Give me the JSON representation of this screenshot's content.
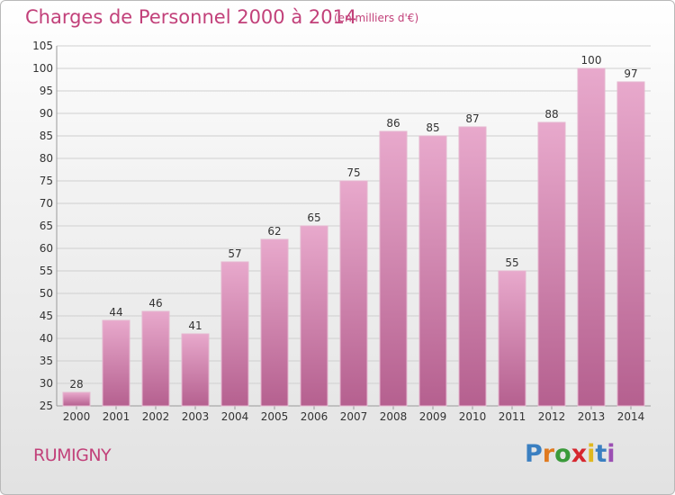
{
  "chart_data": {
    "type": "bar",
    "title": "Charges de Personnel 2000 à 2014",
    "subtitle": "(en milliers d'€)",
    "categories": [
      "2000",
      "2001",
      "2002",
      "2003",
      "2004",
      "2005",
      "2006",
      "2007",
      "2008",
      "2009",
      "2010",
      "2011",
      "2012",
      "2013",
      "2014"
    ],
    "values": [
      28,
      44,
      46,
      41,
      57,
      62,
      65,
      75,
      86,
      85,
      87,
      55,
      88,
      100,
      97
    ],
    "ylim": [
      25,
      105
    ],
    "yticks": [
      25,
      30,
      35,
      40,
      45,
      50,
      55,
      60,
      65,
      70,
      75,
      80,
      85,
      90,
      95,
      100,
      105
    ],
    "grid": true,
    "bar_color": "#d98bb5"
  },
  "footer": {
    "commune": "RUMIGNY",
    "logo_letters": [
      "P",
      "r",
      "o",
      "x",
      "i",
      "t",
      "i"
    ],
    "logo_colors": [
      "#3a7fc1",
      "#e07a1f",
      "#3a9a3a",
      "#d6262e",
      "#e0b81f",
      "#3a7fc1",
      "#9b4fb3"
    ]
  }
}
